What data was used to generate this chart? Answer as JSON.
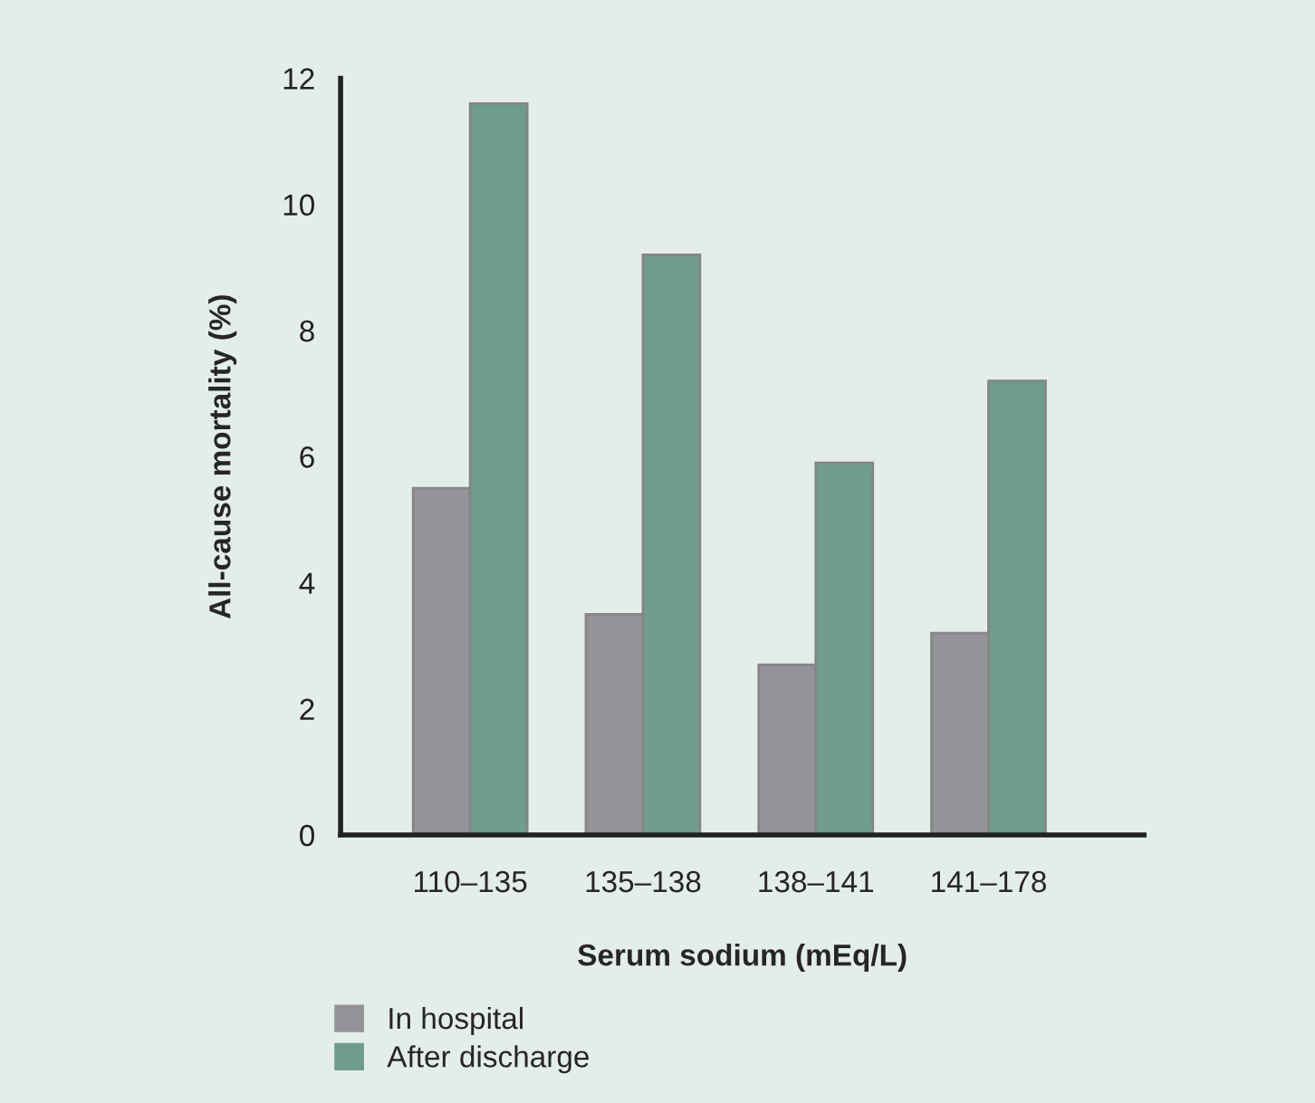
{
  "chart_data": {
    "type": "bar",
    "xlabel": "Serum sodium (mEq/L)",
    "ylabel": "All-cause mortality (%)",
    "categories": [
      "110–135",
      "135–138",
      "138–141",
      "141–178"
    ],
    "series": [
      {
        "name": "In hospital",
        "color": "#939498",
        "values": [
          5.5,
          3.5,
          2.7,
          3.2
        ]
      },
      {
        "name": "After discharge",
        "color": "#6e9c8e",
        "values": [
          11.6,
          9.2,
          5.9,
          7.2
        ]
      }
    ],
    "ylim": [
      0,
      12
    ],
    "yticks": [
      0,
      2,
      4,
      6,
      8,
      10,
      12
    ],
    "grid": false,
    "legend": "bottom left"
  }
}
